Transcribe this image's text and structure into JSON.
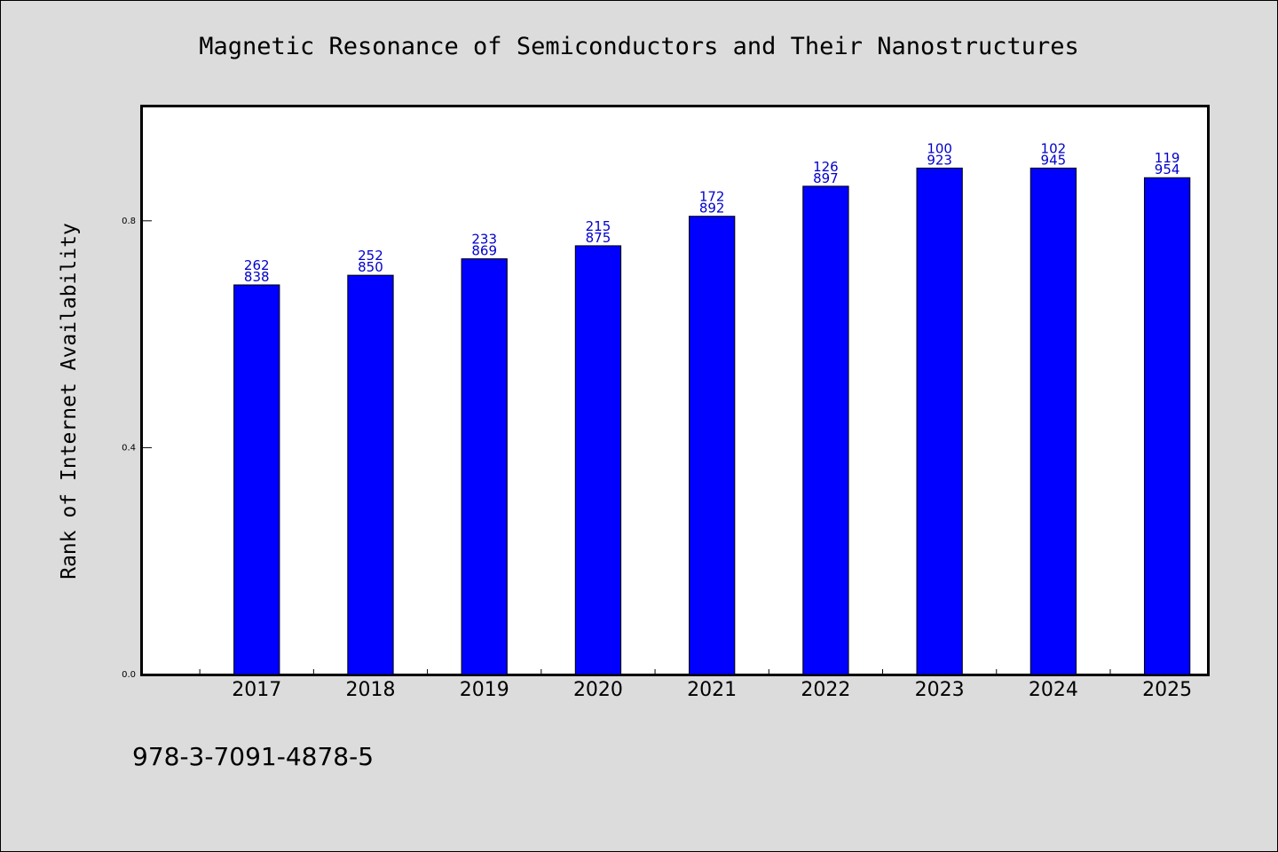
{
  "chart_data": {
    "type": "bar",
    "title": "Magnetic Resonance of Semiconductors and Their Nanostructures",
    "ylabel": "Rank of Internet Availability",
    "xlabel": "",
    "categories": [
      "2017",
      "2018",
      "2019",
      "2020",
      "2021",
      "2022",
      "2023",
      "2024",
      "2025"
    ],
    "values": [
      0.687,
      0.704,
      0.733,
      0.756,
      0.808,
      0.861,
      0.893,
      0.893,
      0.876
    ],
    "data_labels": [
      [
        "262",
        "838"
      ],
      [
        "252",
        "850"
      ],
      [
        "233",
        "869"
      ],
      [
        "215",
        "875"
      ],
      [
        "172",
        "892"
      ],
      [
        "126",
        "897"
      ],
      [
        "100",
        "923"
      ],
      [
        "102",
        "945"
      ],
      [
        "119",
        "954"
      ]
    ],
    "ylim": [
      0.0,
      1.0
    ],
    "xlim": [
      2016,
      2025.35
    ],
    "yticks": [
      0.0,
      0.4,
      0.8
    ],
    "ytick_labels": [
      "0.0",
      "0.4",
      "0.8"
    ],
    "grid": false,
    "legend": "none",
    "bar_color": "#0000ff",
    "label_color": "#0000cc",
    "plot_background": "#ffffff",
    "page_background": "#dcdcdc"
  },
  "footer": {
    "isbn": "978-3-7091-4878-5"
  }
}
